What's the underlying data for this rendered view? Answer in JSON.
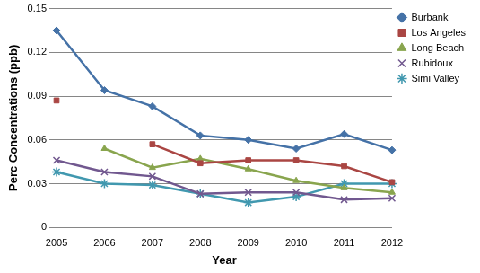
{
  "chart_data": {
    "type": "line",
    "x_label": "Year",
    "y_label": "Perc Concentrations (ppb)",
    "categories": [
      "2005",
      "2006",
      "2007",
      "2008",
      "2009",
      "2010",
      "2011",
      "2012"
    ],
    "series": [
      {
        "name": "Burbank",
        "color": "#4572A7",
        "marker": "diamond",
        "values": [
          0.135,
          0.094,
          0.083,
          0.063,
          0.06,
          0.054,
          0.064,
          0.053
        ]
      },
      {
        "name": "Los Angeles",
        "color": "#AA4643",
        "marker": "square",
        "values": [
          0.087,
          null,
          0.057,
          0.044,
          0.046,
          0.046,
          0.042,
          0.031
        ]
      },
      {
        "name": "Long Beach",
        "color": "#89A54E",
        "marker": "triangle",
        "values": [
          null,
          0.054,
          0.041,
          0.047,
          0.04,
          0.032,
          0.027,
          0.024
        ]
      },
      {
        "name": "Rubidoux",
        "color": "#71588F",
        "marker": "cross",
        "values": [
          0.046,
          0.038,
          0.035,
          0.023,
          0.024,
          0.024,
          0.019,
          0.02
        ]
      },
      {
        "name": "Simi Valley",
        "color": "#4198AF",
        "marker": "star",
        "values": [
          0.038,
          0.03,
          0.029,
          0.023,
          0.017,
          0.021,
          0.03,
          0.03
        ]
      }
    ],
    "ylim": [
      0,
      0.15
    ],
    "yticks": [
      0,
      0.03,
      0.06,
      0.09,
      0.12,
      0.15
    ],
    "grid": "y",
    "legend": "right"
  }
}
